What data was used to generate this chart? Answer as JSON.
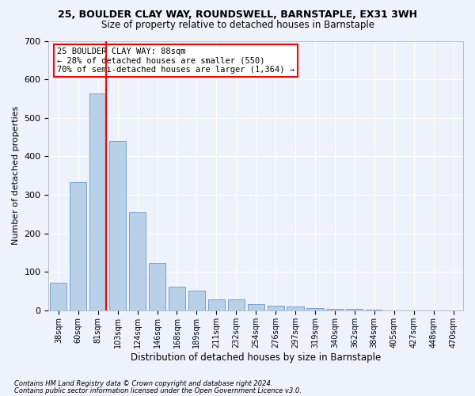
{
  "title1": "25, BOULDER CLAY WAY, ROUNDSWELL, BARNSTAPLE, EX31 3WH",
  "title2": "Size of property relative to detached houses in Barnstaple",
  "xlabel": "Distribution of detached houses by size in Barnstaple",
  "ylabel": "Number of detached properties",
  "categories": [
    "38sqm",
    "60sqm",
    "81sqm",
    "103sqm",
    "124sqm",
    "146sqm",
    "168sqm",
    "189sqm",
    "211sqm",
    "232sqm",
    "254sqm",
    "276sqm",
    "297sqm",
    "319sqm",
    "340sqm",
    "362sqm",
    "384sqm",
    "405sqm",
    "427sqm",
    "448sqm",
    "470sqm"
  ],
  "values": [
    72,
    332,
    563,
    440,
    254,
    124,
    62,
    51,
    29,
    29,
    16,
    13,
    11,
    5,
    3,
    3,
    2,
    0,
    0,
    0,
    0
  ],
  "bar_color": "#b8d0e8",
  "bar_edge_color": "#6699cc",
  "vline_color": "red",
  "annotation_text": "25 BOULDER CLAY WAY: 88sqm\n← 28% of detached houses are smaller (550)\n70% of semi-detached houses are larger (1,364) →",
  "annotation_box_color": "white",
  "annotation_box_edge_color": "red",
  "ylim": [
    0,
    700
  ],
  "yticks": [
    0,
    100,
    200,
    300,
    400,
    500,
    600,
    700
  ],
  "footer1": "Contains HM Land Registry data © Crown copyright and database right 2024.",
  "footer2": "Contains public sector information licensed under the Open Government Licence v3.0.",
  "background_color": "#eef2fb",
  "grid_color": "white"
}
